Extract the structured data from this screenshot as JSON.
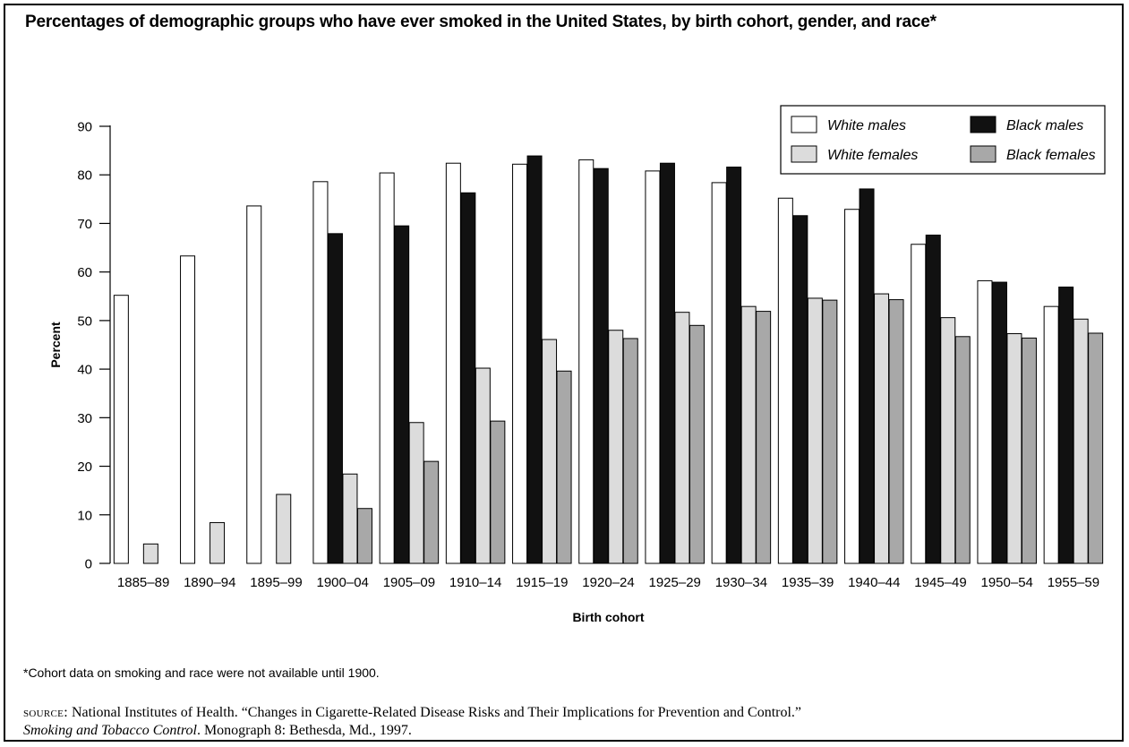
{
  "chart_data": {
    "type": "bar",
    "title": "Percentages of demographic groups who have ever smoked in the United States, by birth cohort, gender, and race*",
    "xlabel": "Birth cohort",
    "ylabel": "Percent",
    "ylim": [
      0,
      90
    ],
    "yticks": [
      0,
      10,
      20,
      30,
      40,
      50,
      60,
      70,
      80,
      90
    ],
    "grid": false,
    "legend_position": "top-right",
    "categories": [
      "1885–89",
      "1890–94",
      "1895–99",
      "1900–04",
      "1905–09",
      "1910–14",
      "1915–19",
      "1920–24",
      "1925–29",
      "1930–34",
      "1935–39",
      "1940–44",
      "1945–49",
      "1950–54",
      "1955–59"
    ],
    "series": [
      {
        "name": "White males",
        "color": "#ffffff",
        "values": [
          55.2,
          63.3,
          73.6,
          78.6,
          80.4,
          82.4,
          82.2,
          83.1,
          80.8,
          78.4,
          75.2,
          72.9,
          65.7,
          58.2,
          52.9
        ]
      },
      {
        "name": "Black males",
        "color": "#111111",
        "values": [
          null,
          null,
          null,
          67.9,
          69.5,
          76.3,
          83.9,
          81.3,
          82.4,
          81.6,
          71.6,
          77.1,
          67.6,
          57.9,
          56.9
        ]
      },
      {
        "name": "White females",
        "color": "#dcdcdc",
        "values": [
          4.0,
          8.4,
          14.2,
          18.4,
          29.0,
          40.2,
          46.1,
          48.0,
          51.7,
          52.9,
          54.6,
          55.5,
          50.6,
          47.3,
          50.3
        ]
      },
      {
        "name": "Black females",
        "color": "#a8a8a8",
        "values": [
          null,
          null,
          null,
          11.3,
          21.0,
          29.3,
          39.6,
          46.3,
          49.0,
          51.9,
          54.2,
          54.3,
          46.7,
          46.4,
          47.4
        ]
      }
    ]
  },
  "footnote": "*Cohort data on smoking and race were not available until 1900.",
  "source": {
    "label": "SOURCE:",
    "text1": " National Institutes of Health. “Changes in Cigarette-Related Disease Risks and Their Implications for Prevention and Control.”",
    "publication": "Smoking and Tobacco Control",
    "text2": ". Monograph 8: Bethesda, Md., 1997."
  }
}
